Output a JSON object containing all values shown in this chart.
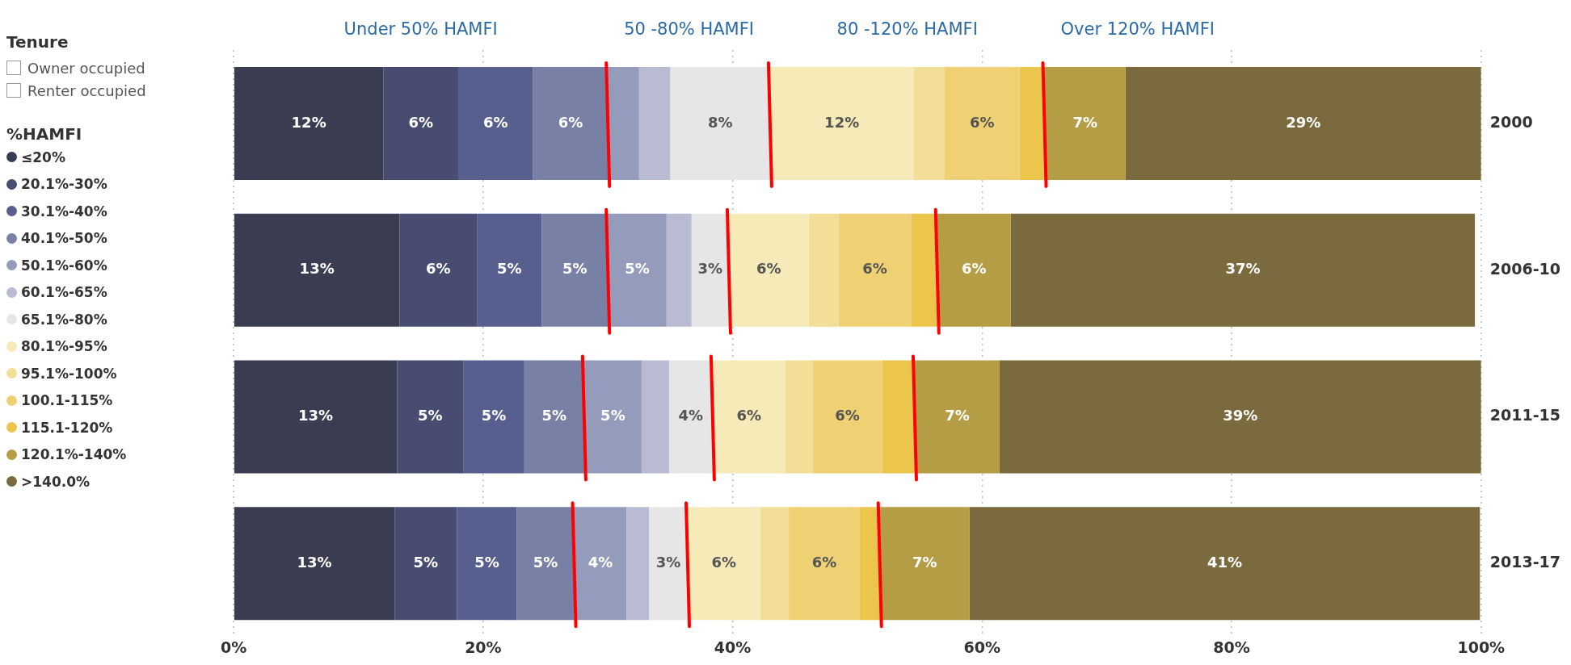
{
  "chart_data": {
    "type": "bar",
    "orientation": "horizontal",
    "stacked": true,
    "categories": [
      "2000",
      "2006-10",
      "2011-15",
      "2013-17"
    ],
    "series": [
      {
        "name": "≤20%",
        "color": "#3a3d52",
        "values": [
          12,
          13.3,
          13.1,
          12.9
        ],
        "value_labels": [
          "12%",
          "13%",
          "13%",
          "13%"
        ]
      },
      {
        "name": "20.1%-30%",
        "color": "#474c70",
        "values": [
          6,
          6.2,
          5.3,
          5
        ],
        "value_labels": [
          "6%",
          "6%",
          "5%",
          "5%"
        ]
      },
      {
        "name": "30.1%-40%",
        "color": "#565f8e",
        "values": [
          6,
          5.2,
          4.9,
          4.8
        ],
        "value_labels": [
          "6%",
          "5%",
          "5%",
          "5%"
        ]
      },
      {
        "name": "40.1%-50%",
        "color": "#7880a5",
        "values": [
          6,
          5.3,
          4.8,
          4.6
        ],
        "value_labels": [
          "6%",
          "5%",
          "5%",
          "5%"
        ]
      },
      {
        "name": "50.1%-60%",
        "color": "#959bbb",
        "values": [
          2.5,
          4.7,
          4.6,
          4.2
        ],
        "value_labels": [
          null,
          "5%",
          "5%",
          "4%"
        ]
      },
      {
        "name": "60.1%-65%",
        "color": "#b8bbd2",
        "values": [
          2.5,
          2,
          2.2,
          1.8
        ],
        "value_labels": [
          null,
          null,
          null,
          null
        ]
      },
      {
        "name": "65.1%-80%",
        "color": "#e6e6e6",
        "values": [
          8,
          3,
          3.5,
          3.1
        ],
        "value_labels": [
          "8%",
          "3%",
          "4%",
          "3%"
        ]
      },
      {
        "name": "80.1%-95%",
        "color": "#f5eab8",
        "values": [
          11.5,
          6.4,
          5.8,
          5.8
        ],
        "value_labels": [
          "12%",
          "6%",
          "6%",
          "6%"
        ]
      },
      {
        "name": "95.1%-100%",
        "color": "#f2de96",
        "values": [
          2.5,
          2.4,
          2.2,
          2.3
        ],
        "value_labels": [
          null,
          null,
          null,
          null
        ]
      },
      {
        "name": "100.1-115%",
        "color": "#efd173",
        "values": [
          6,
          5.8,
          5.6,
          5.7
        ],
        "value_labels": [
          "6%",
          "6%",
          "6%",
          "6%"
        ]
      },
      {
        "name": "115.1-120%",
        "color": "#ecc54c",
        "values": [
          2,
          2.1,
          2.6,
          1.6
        ],
        "value_labels": [
          null,
          null,
          null,
          null
        ]
      },
      {
        "name": "120.1%-140%",
        "color": "#b59d45",
        "values": [
          6.5,
          5.9,
          6.8,
          7.2
        ],
        "value_labels": [
          "7%",
          "6%",
          "7%",
          "7%"
        ]
      },
      {
        "name": ">140.0%",
        "color": "#7a6a3d",
        "values": [
          28.5,
          37.2,
          38.6,
          40.9
        ],
        "value_labels": [
          "29%",
          "37%",
          "39%",
          "41%"
        ]
      }
    ],
    "xlim": [
      0,
      100
    ],
    "xticks": [
      {
        "value": 0,
        "label": "0%"
      },
      {
        "value": 20,
        "label": "20%"
      },
      {
        "value": 40,
        "label": "40%"
      },
      {
        "value": 60,
        "label": "60%"
      },
      {
        "value": 80,
        "label": "80%"
      },
      {
        "value": 100,
        "label": "100%"
      }
    ],
    "grid": "x",
    "legend": "left",
    "legend_title": "%HAMFI",
    "annotations": [
      "Under 50% HAMFI",
      "50 -80% HAMFI",
      "80 -120% HAMFI",
      "Over 120% HAMFI",
      "Tenure",
      "Owner occupied",
      "Renter occupied"
    ]
  }
}
